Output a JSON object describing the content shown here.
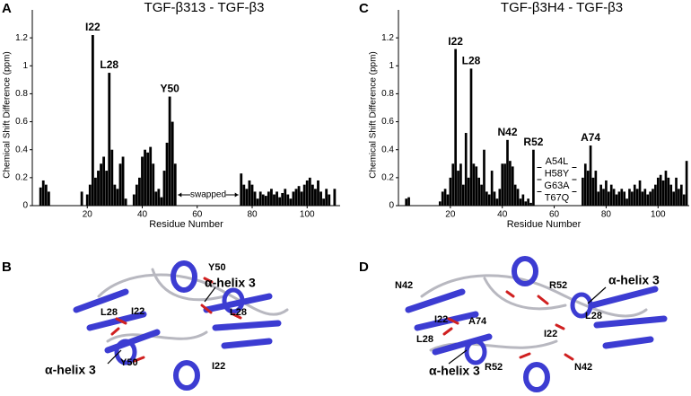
{
  "panels": [
    "A",
    "B",
    "C",
    "D"
  ],
  "chart_data": [
    {
      "type": "bar",
      "title": "TGF-β313 - TGF-β3",
      "xlabel": "Residue Number",
      "ylabel": "Chemical Shift Difference (ppm)",
      "color": "#000000",
      "x": [
        3,
        4,
        5,
        6,
        18,
        20,
        21,
        22,
        23,
        24,
        25,
        26,
        27,
        28,
        29,
        30,
        31,
        32,
        33,
        34,
        37,
        38,
        39,
        40,
        41,
        42,
        43,
        44,
        45,
        46,
        47,
        48,
        49,
        50,
        51,
        52,
        76,
        77,
        78,
        79,
        80,
        81,
        82,
        83,
        84,
        85,
        86,
        87,
        88,
        89,
        90,
        91,
        92,
        93,
        94,
        95,
        96,
        97,
        98,
        99,
        100,
        101,
        102,
        103,
        104,
        105,
        106,
        107,
        108,
        110
      ],
      "values": [
        0.13,
        0.18,
        0.15,
        0.1,
        0.1,
        0.08,
        0.15,
        1.22,
        0.2,
        0.25,
        0.3,
        0.35,
        0.25,
        0.95,
        0.4,
        0.15,
        0.12,
        0.3,
        0.35,
        0.05,
        0.08,
        0.15,
        0.2,
        0.35,
        0.4,
        0.38,
        0.42,
        0.3,
        0.1,
        0.12,
        0.06,
        0.25,
        0.45,
        0.78,
        0.6,
        0.3,
        0.23,
        0.15,
        0.12,
        0.18,
        0.15,
        0.1,
        0.05,
        0.1,
        0.08,
        0.07,
        0.1,
        0.12,
        0.08,
        0.1,
        0.06,
        0.09,
        0.12,
        0.08,
        0.05,
        0.1,
        0.12,
        0.14,
        0.1,
        0.15,
        0.18,
        0.2,
        0.15,
        0.12,
        0.18,
        0.1,
        0.05,
        0.12,
        0.08,
        0.12
      ],
      "xlim": [
        0,
        112
      ],
      "ylim": [
        0,
        1.4
      ],
      "xticks": [
        20,
        40,
        60,
        80,
        100
      ],
      "yticks": [
        0,
        0.2,
        0.4,
        0.6,
        0.8,
        1,
        1.2
      ],
      "annotations": [
        {
          "text": "I22",
          "x": 22
        },
        {
          "text": "L28",
          "x": 28
        },
        {
          "text": "Y50",
          "x": 50
        }
      ],
      "range_annotation": {
        "text": "swapped",
        "x": [
          53,
          75
        ]
      }
    },
    {
      "type": "bar",
      "title": "TGF-β3H4 - TGF-β3",
      "xlabel": "Residue Number",
      "ylabel": "Chemical Shift Difference (ppm)",
      "color": "#000000",
      "x": [
        3,
        4,
        16,
        17,
        18,
        19,
        20,
        21,
        22,
        23,
        24,
        25,
        26,
        27,
        28,
        29,
        30,
        31,
        32,
        33,
        34,
        35,
        36,
        37,
        38,
        39,
        40,
        41,
        42,
        43,
        44,
        45,
        46,
        47,
        48,
        49,
        50,
        51,
        52,
        71,
        72,
        73,
        74,
        75,
        76,
        77,
        78,
        79,
        80,
        81,
        82,
        83,
        84,
        85,
        86,
        87,
        88,
        89,
        90,
        91,
        92,
        93,
        94,
        95,
        96,
        97,
        98,
        99,
        100,
        101,
        102,
        103,
        104,
        105,
        106,
        107,
        108,
        109,
        110,
        111
      ],
      "values": [
        0.05,
        0.06,
        0.03,
        0.1,
        0.12,
        0.08,
        0.2,
        0.3,
        1.12,
        0.25,
        0.3,
        0.15,
        0.52,
        0.2,
        0.98,
        0.3,
        0.28,
        0.2,
        0.15,
        0.4,
        0.1,
        0.08,
        0.25,
        0.1,
        0.05,
        0.12,
        0.3,
        0.3,
        0.47,
        0.32,
        0.28,
        0.15,
        0.12,
        0.05,
        0.08,
        0.03,
        0.05,
        0.02,
        0.4,
        0.2,
        0.3,
        0.25,
        0.43,
        0.2,
        0.25,
        0.1,
        0.15,
        0.12,
        0.18,
        0.1,
        0.15,
        0.12,
        0.08,
        0.1,
        0.12,
        0.1,
        0.05,
        0.12,
        0.1,
        0.15,
        0.12,
        0.18,
        0.1,
        0.12,
        0.08,
        0.1,
        0.12,
        0.15,
        0.2,
        0.22,
        0.18,
        0.25,
        0.2,
        0.15,
        0.1,
        0.2,
        0.12,
        0.15,
        0.08,
        0.32
      ],
      "xlim": [
        0,
        112
      ],
      "ylim": [
        0,
        1.4
      ],
      "xticks": [
        20,
        40,
        60,
        80,
        100
      ],
      "yticks": [
        0,
        0.2,
        0.4,
        0.6,
        0.8,
        1,
        1.2
      ],
      "annotations": [
        {
          "text": "I22",
          "x": 22
        },
        {
          "text": "L28",
          "x": 28
        },
        {
          "text": "N42",
          "x": 42
        },
        {
          "text": "R52",
          "x": 52
        },
        {
          "text": "A74",
          "x": 74
        }
      ],
      "mutations": {
        "x": 61,
        "labels": [
          "A54L",
          "H58Y",
          "G63A",
          "T67Q"
        ]
      }
    }
  ],
  "structures": [
    {
      "labels": [
        "α-helix 3",
        "Y50",
        "I22",
        "L28",
        "L28",
        "α-helix 3",
        "Y50",
        "I22"
      ]
    },
    {
      "labels": [
        "N42",
        "R52",
        "α-helix 3",
        "L28",
        "I22",
        "A74",
        "I22",
        "L28",
        "α-helix 3",
        "R52",
        "N42"
      ]
    }
  ]
}
